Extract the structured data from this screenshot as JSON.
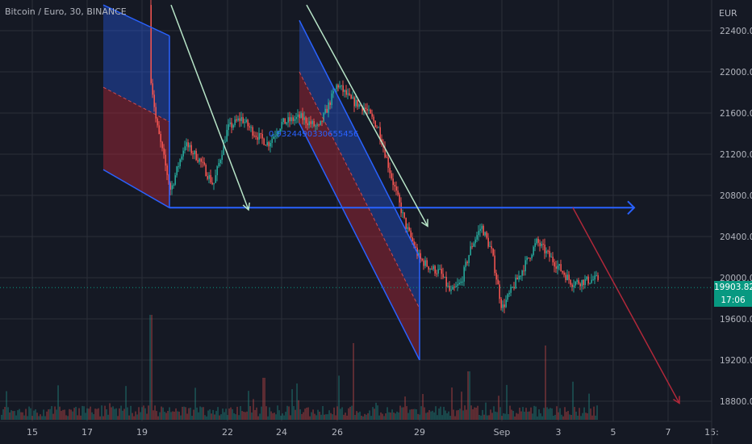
{
  "header": {
    "title": "Bitcoin / Euro, 30, BINANCE",
    "currency": "EUR"
  },
  "price_tag": {
    "price": "19903.82",
    "countdown": "17:06",
    "color": "#089981"
  },
  "annotation": {
    "text": "0.9324490330655456",
    "color": "#2962ff"
  },
  "colors": {
    "background": "#151924",
    "grid": "#2a2e39",
    "up": "#26a69a",
    "down": "#ef5350",
    "channel_line": "#2962ff",
    "arrow_green": "#b7e4c7",
    "arrow_red": "#b2283a"
  },
  "chart_data": {
    "type": "candlestick",
    "title": "Bitcoin / Euro, 30, BINANCE",
    "yunit": "EUR",
    "y_ticks": [
      22400,
      22000,
      21600,
      21200,
      20800,
      20400,
      20000,
      19600,
      19200,
      18800
    ],
    "x_ticks": [
      "15",
      "17",
      "19",
      "22",
      "24",
      "26",
      "29",
      "Sep",
      "3",
      "5",
      "7",
      "15:"
    ],
    "ylim": [
      18700,
      22650
    ],
    "grid": true,
    "last_price": 19903.82,
    "price_path": [
      {
        "x": "19",
        "y": 22650
      },
      {
        "x": "19",
        "y": 21500
      },
      {
        "x": "19",
        "y": 20850
      },
      {
        "x": "19",
        "y": 21300
      },
      {
        "x": "19",
        "y": 21150
      },
      {
        "x": "19",
        "y": 20900
      },
      {
        "x": "22",
        "y": 21450
      },
      {
        "x": "22",
        "y": 21550
      },
      {
        "x": "22",
        "y": 21400
      },
      {
        "x": "22",
        "y": 21300
      },
      {
        "x": "24",
        "y": 21500
      },
      {
        "x": "24",
        "y": 21560
      },
      {
        "x": "24",
        "y": 21450
      },
      {
        "x": "26",
        "y": 21880
      },
      {
        "x": "26",
        "y": 21720
      },
      {
        "x": "26",
        "y": 21650
      },
      {
        "x": "26",
        "y": 21450
      },
      {
        "x": "26",
        "y": 20950
      },
      {
        "x": "26",
        "y": 20500
      },
      {
        "x": "29",
        "y": 20180
      },
      {
        "x": "29",
        "y": 20100
      },
      {
        "x": "29",
        "y": 20050
      },
      {
        "x": "29",
        "y": 19850
      },
      {
        "x": "29",
        "y": 19950
      },
      {
        "x": "29",
        "y": 20300
      },
      {
        "x": "29",
        "y": 20500
      },
      {
        "x": "29",
        "y": 20250
      },
      {
        "x": "Sep",
        "y": 19700
      },
      {
        "x": "Sep",
        "y": 20350
      },
      {
        "x": "Sep",
        "y": 19950
      },
      {
        "x": "Sep",
        "y": 20000
      },
      {
        "x": "Sep",
        "y": 19850
      },
      {
        "x": "Sep",
        "y": 19800
      },
      {
        "x": "3",
        "y": 20300
      },
      {
        "x": "3",
        "y": 20250
      },
      {
        "x": "3",
        "y": 20000
      },
      {
        "x": "3",
        "y": 19950
      },
      {
        "x": "3",
        "y": 19920
      },
      {
        "x": "3",
        "y": 19903.82
      }
    ],
    "drawings": [
      {
        "kind": "horizontal-ray",
        "y": 20680,
        "from": "19",
        "to": "5"
      },
      {
        "kind": "channel",
        "from": "19",
        "to": "19",
        "upper_start": 22650,
        "upper_end": 22350,
        "lower_start": 21050,
        "lower_end": 20680
      },
      {
        "kind": "channel",
        "from": "24",
        "to": "29",
        "upper_start": 22500,
        "upper_end": 20200,
        "lower_start": 21500,
        "lower_end": 19200
      },
      {
        "kind": "trend-arrow",
        "color": "green",
        "start": {
          "x": "19",
          "y": 22650
        },
        "end": {
          "x": "22",
          "y": 20660
        }
      },
      {
        "kind": "trend-arrow",
        "color": "green",
        "start": {
          "x": "24",
          "y": 22650
        },
        "end": {
          "x": "29",
          "y": 20500
        }
      },
      {
        "kind": "trend-arrow",
        "color": "red",
        "start": {
          "x": "3",
          "y": 20680
        },
        "end": {
          "x": "7",
          "y": 18780
        }
      }
    ]
  }
}
